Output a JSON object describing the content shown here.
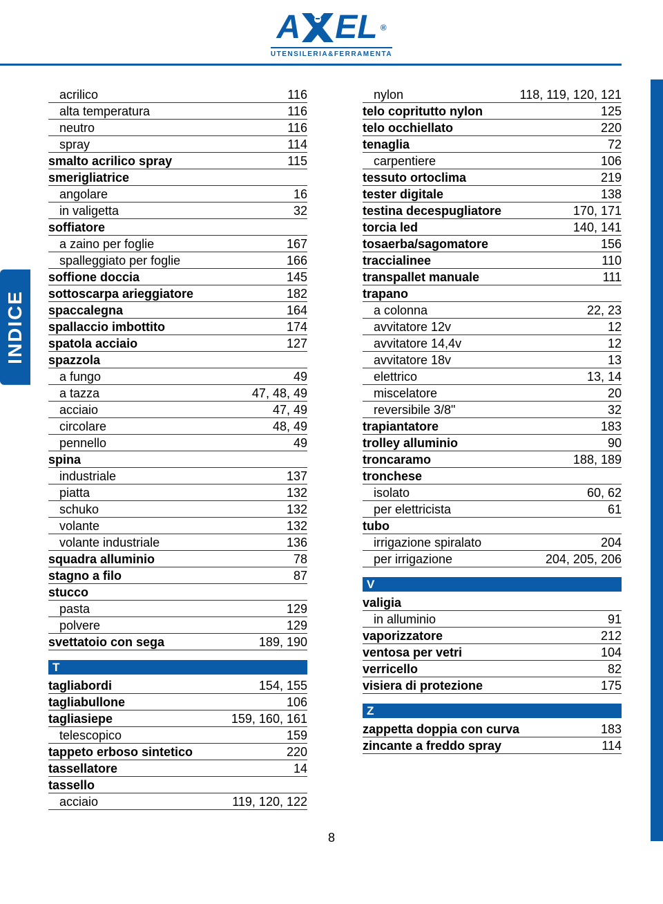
{
  "colors": {
    "brand": "#0a5ca8",
    "text": "#000000",
    "rule": "#333333",
    "bg": "#ffffff"
  },
  "typography": {
    "body_fontsize_pt": 14,
    "sidetab_fontsize_pt": 22,
    "font_family": "Arial"
  },
  "logo": {
    "title_line1": "A",
    "title_line2": "EL",
    "reg": "®",
    "subtitle": "UTENSILERIA&FERRAMENTA",
    "x_fill": "#ffffff",
    "x_stroke": "#0a5ca8"
  },
  "side_tab": "INDICE",
  "page_number": "8",
  "left_col": [
    {
      "term": "acrilico",
      "pages": "116",
      "bold": false,
      "indent": true
    },
    {
      "term": "alta temperatura",
      "pages": "116",
      "bold": false,
      "indent": true
    },
    {
      "term": "neutro",
      "pages": "116",
      "bold": false,
      "indent": true
    },
    {
      "term": "spray",
      "pages": "114",
      "bold": false,
      "indent": true
    },
    {
      "term": "smalto acrilico spray",
      "pages": "115",
      "bold": true,
      "indent": false
    },
    {
      "term": "smerigliatrice",
      "pages": "",
      "bold": true,
      "indent": false
    },
    {
      "term": "angolare",
      "pages": "16",
      "bold": false,
      "indent": true
    },
    {
      "term": "in valigetta",
      "pages": "32",
      "bold": false,
      "indent": true
    },
    {
      "term": "soffiatore",
      "pages": "",
      "bold": true,
      "indent": false
    },
    {
      "term": "a zaino per foglie",
      "pages": "167",
      "bold": false,
      "indent": true
    },
    {
      "term": "spalleggiato per foglie",
      "pages": "166",
      "bold": false,
      "indent": true
    },
    {
      "term": "soffione doccia",
      "pages": "145",
      "bold": true,
      "indent": false
    },
    {
      "term": "sottoscarpa arieggiatore",
      "pages": "182",
      "bold": true,
      "indent": false
    },
    {
      "term": "spaccalegna",
      "pages": "164",
      "bold": true,
      "indent": false
    },
    {
      "term": "spallaccio imbottito",
      "pages": "174",
      "bold": true,
      "indent": false
    },
    {
      "term": "spatola acciaio",
      "pages": "127",
      "bold": true,
      "indent": false
    },
    {
      "term": "spazzola",
      "pages": "",
      "bold": true,
      "indent": false
    },
    {
      "term": "a fungo",
      "pages": "49",
      "bold": false,
      "indent": true
    },
    {
      "term": "a tazza",
      "pages": "47, 48, 49",
      "bold": false,
      "indent": true
    },
    {
      "term": "acciaio",
      "pages": "47, 49",
      "bold": false,
      "indent": true
    },
    {
      "term": "circolare",
      "pages": "48, 49",
      "bold": false,
      "indent": true
    },
    {
      "term": "pennello",
      "pages": "49",
      "bold": false,
      "indent": true
    },
    {
      "term": "spina",
      "pages": "",
      "bold": true,
      "indent": false
    },
    {
      "term": "industriale",
      "pages": "137",
      "bold": false,
      "indent": true
    },
    {
      "term": "piatta",
      "pages": "132",
      "bold": false,
      "indent": true
    },
    {
      "term": "schuko",
      "pages": "132",
      "bold": false,
      "indent": true
    },
    {
      "term": "volante",
      "pages": "132",
      "bold": false,
      "indent": true
    },
    {
      "term": "volante industriale",
      "pages": "136",
      "bold": false,
      "indent": true
    },
    {
      "term": "squadra alluminio",
      "pages": "78",
      "bold": true,
      "indent": false
    },
    {
      "term": "stagno a filo",
      "pages": "87",
      "bold": true,
      "indent": false
    },
    {
      "term": "stucco",
      "pages": "",
      "bold": true,
      "indent": false
    },
    {
      "term": "pasta",
      "pages": "129",
      "bold": false,
      "indent": true
    },
    {
      "term": "polvere",
      "pages": "129",
      "bold": false,
      "indent": true
    },
    {
      "term": "svettatoio con sega",
      "pages": "189, 190",
      "bold": true,
      "indent": false
    }
  ],
  "left_section_T": "T",
  "left_col_T": [
    {
      "term": "tagliabordi",
      "pages": "154, 155",
      "bold": true,
      "indent": false
    },
    {
      "term": "tagliabullone",
      "pages": "106",
      "bold": true,
      "indent": false
    },
    {
      "term": "tagliasiepe",
      "pages": "159, 160, 161",
      "bold": true,
      "indent": false
    },
    {
      "term": "telescopico",
      "pages": "159",
      "bold": false,
      "indent": true
    },
    {
      "term": "tappeto erboso sintetico",
      "pages": "220",
      "bold": true,
      "indent": false
    },
    {
      "term": "tassellatore",
      "pages": "14",
      "bold": true,
      "indent": false
    },
    {
      "term": "tassello",
      "pages": "",
      "bold": true,
      "indent": false
    },
    {
      "term": "acciaio",
      "pages": "119, 120, 122",
      "bold": false,
      "indent": true
    }
  ],
  "right_col": [
    {
      "term": "nylon",
      "pages": "118, 119, 120, 121",
      "bold": false,
      "indent": true
    },
    {
      "term": "telo copritutto nylon",
      "pages": "125",
      "bold": true,
      "indent": false
    },
    {
      "term": "telo occhiellato",
      "pages": "220",
      "bold": true,
      "indent": false
    },
    {
      "term": "tenaglia",
      "pages": "72",
      "bold": true,
      "indent": false
    },
    {
      "term": "carpentiere",
      "pages": "106",
      "bold": false,
      "indent": true
    },
    {
      "term": "tessuto ortoclima",
      "pages": "219",
      "bold": true,
      "indent": false
    },
    {
      "term": "tester digitale",
      "pages": "138",
      "bold": true,
      "indent": false
    },
    {
      "term": "testina decespugliatore",
      "pages": "170, 171",
      "bold": true,
      "indent": false
    },
    {
      "term": "torcia led",
      "pages": "140, 141",
      "bold": true,
      "indent": false
    },
    {
      "term": "tosaerba/sagomatore",
      "pages": "156",
      "bold": true,
      "indent": false
    },
    {
      "term": "traccialinee",
      "pages": "110",
      "bold": true,
      "indent": false
    },
    {
      "term": "transpallet manuale",
      "pages": "111",
      "bold": true,
      "indent": false
    },
    {
      "term": "trapano",
      "pages": "",
      "bold": true,
      "indent": false
    },
    {
      "term": "a colonna",
      "pages": "22, 23",
      "bold": false,
      "indent": true
    },
    {
      "term": "avvitatore 12v",
      "pages": "12",
      "bold": false,
      "indent": true
    },
    {
      "term": "avvitatore 14,4v",
      "pages": "12",
      "bold": false,
      "indent": true
    },
    {
      "term": "avvitatore 18v",
      "pages": "13",
      "bold": false,
      "indent": true
    },
    {
      "term": "elettrico",
      "pages": "13, 14",
      "bold": false,
      "indent": true
    },
    {
      "term": "miscelatore",
      "pages": "20",
      "bold": false,
      "indent": true
    },
    {
      "term": "reversibile 3/8\"",
      "pages": "32",
      "bold": false,
      "indent": true
    },
    {
      "term": "trapiantatore",
      "pages": "183",
      "bold": true,
      "indent": false
    },
    {
      "term": "trolley alluminio",
      "pages": "90",
      "bold": true,
      "indent": false
    },
    {
      "term": "troncaramo",
      "pages": "188, 189",
      "bold": true,
      "indent": false
    },
    {
      "term": "tronchese",
      "pages": "",
      "bold": true,
      "indent": false
    },
    {
      "term": "isolato",
      "pages": "60, 62",
      "bold": false,
      "indent": true
    },
    {
      "term": "per elettricista",
      "pages": "61",
      "bold": false,
      "indent": true
    },
    {
      "term": "tubo",
      "pages": "",
      "bold": true,
      "indent": false
    },
    {
      "term": "irrigazione spiralato",
      "pages": "204",
      "bold": false,
      "indent": true
    },
    {
      "term": "per irrigazione",
      "pages": "204, 205, 206",
      "bold": false,
      "indent": true
    }
  ],
  "right_section_V": "V",
  "right_col_V": [
    {
      "term": "valigia",
      "pages": "",
      "bold": true,
      "indent": false
    },
    {
      "term": "in alluminio",
      "pages": "91",
      "bold": false,
      "indent": true
    },
    {
      "term": "vaporizzatore",
      "pages": "212",
      "bold": true,
      "indent": false
    },
    {
      "term": "ventosa per vetri",
      "pages": "104",
      "bold": true,
      "indent": false
    },
    {
      "term": "verricello",
      "pages": "82",
      "bold": true,
      "indent": false
    },
    {
      "term": "visiera di protezione",
      "pages": "175",
      "bold": true,
      "indent": false
    }
  ],
  "right_section_Z": "Z",
  "right_col_Z": [
    {
      "term": "zappetta doppia con curva",
      "pages": "183",
      "bold": true,
      "indent": false
    },
    {
      "term": "zincante a freddo spray",
      "pages": "114",
      "bold": true,
      "indent": false
    }
  ]
}
